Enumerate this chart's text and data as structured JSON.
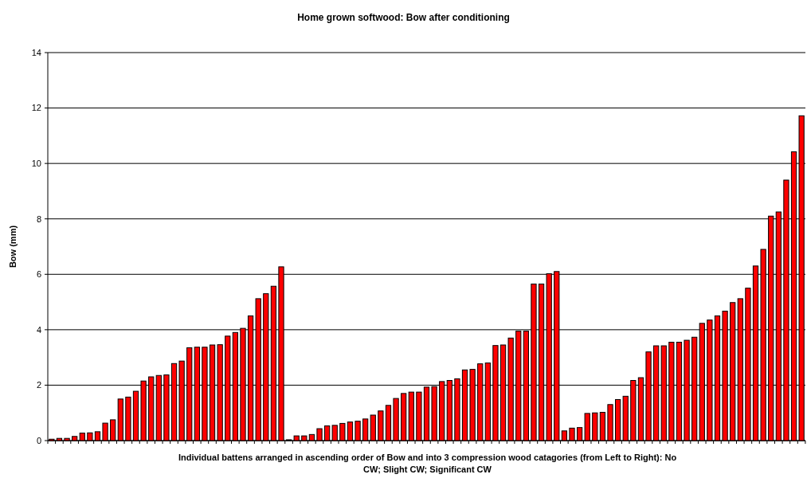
{
  "chart_data": {
    "type": "bar",
    "title": "Home grown softwood: Bow after conditioning",
    "xlabel": "Individual battens arranged in ascending order of Bow and into 3 compression wood catagories (from Left to Right): No CW; Slight CW; Significant CW",
    "ylabel": "Bow (mm)",
    "categories": [
      null,
      null,
      null,
      null,
      null,
      null,
      null,
      null,
      null,
      null,
      null,
      null,
      null,
      null,
      null,
      null,
      null,
      null,
      null,
      null,
      null,
      null,
      null,
      null,
      null,
      null,
      null,
      null,
      null,
      null,
      null,
      null,
      null,
      null,
      null,
      null,
      null,
      null,
      null,
      null,
      null,
      null,
      null,
      null,
      null,
      null,
      null,
      null,
      null,
      null,
      null,
      null,
      null,
      null,
      null,
      null,
      null,
      null,
      null,
      null,
      null,
      null,
      null,
      null,
      null,
      null,
      null,
      null,
      null,
      null,
      null,
      null,
      null,
      null,
      null,
      null,
      null,
      null,
      null,
      null,
      null,
      null,
      null,
      null,
      null,
      null,
      null,
      null,
      null,
      null,
      null,
      null,
      null,
      null,
      null,
      null,
      null,
      null,
      null
    ],
    "values": [
      0.05,
      0.08,
      0.08,
      0.15,
      0.27,
      0.28,
      0.32,
      0.63,
      0.75,
      1.5,
      1.57,
      1.78,
      2.15,
      2.3,
      2.35,
      2.37,
      2.78,
      2.87,
      3.35,
      3.37,
      3.37,
      3.45,
      3.46,
      3.77,
      3.9,
      4.05,
      4.5,
      5.12,
      5.3,
      5.57,
      6.27,
      0.03,
      0.17,
      0.17,
      0.22,
      0.43,
      0.53,
      0.55,
      0.62,
      0.67,
      0.7,
      0.78,
      0.92,
      1.07,
      1.27,
      1.52,
      1.7,
      1.75,
      1.75,
      1.93,
      1.95,
      2.13,
      2.17,
      2.23,
      2.55,
      2.57,
      2.77,
      2.8,
      3.43,
      3.45,
      3.7,
      3.95,
      3.95,
      5.65,
      5.65,
      6.02,
      6.1,
      0.35,
      0.45,
      0.47,
      0.98,
      1.0,
      1.02,
      1.3,
      1.48,
      1.6,
      2.17,
      2.27,
      3.2,
      3.42,
      3.42,
      3.55,
      3.55,
      3.62,
      3.73,
      4.23,
      4.35,
      4.5,
      4.67,
      4.98,
      5.12,
      5.5,
      6.3,
      6.9,
      8.1,
      8.25,
      9.4,
      10.42,
      11.72
    ],
    "color": "#ff0000",
    "ylim": [
      0,
      14
    ],
    "yticks": [
      0,
      2,
      4,
      6,
      8,
      10,
      12,
      14
    ],
    "grid": "y"
  }
}
